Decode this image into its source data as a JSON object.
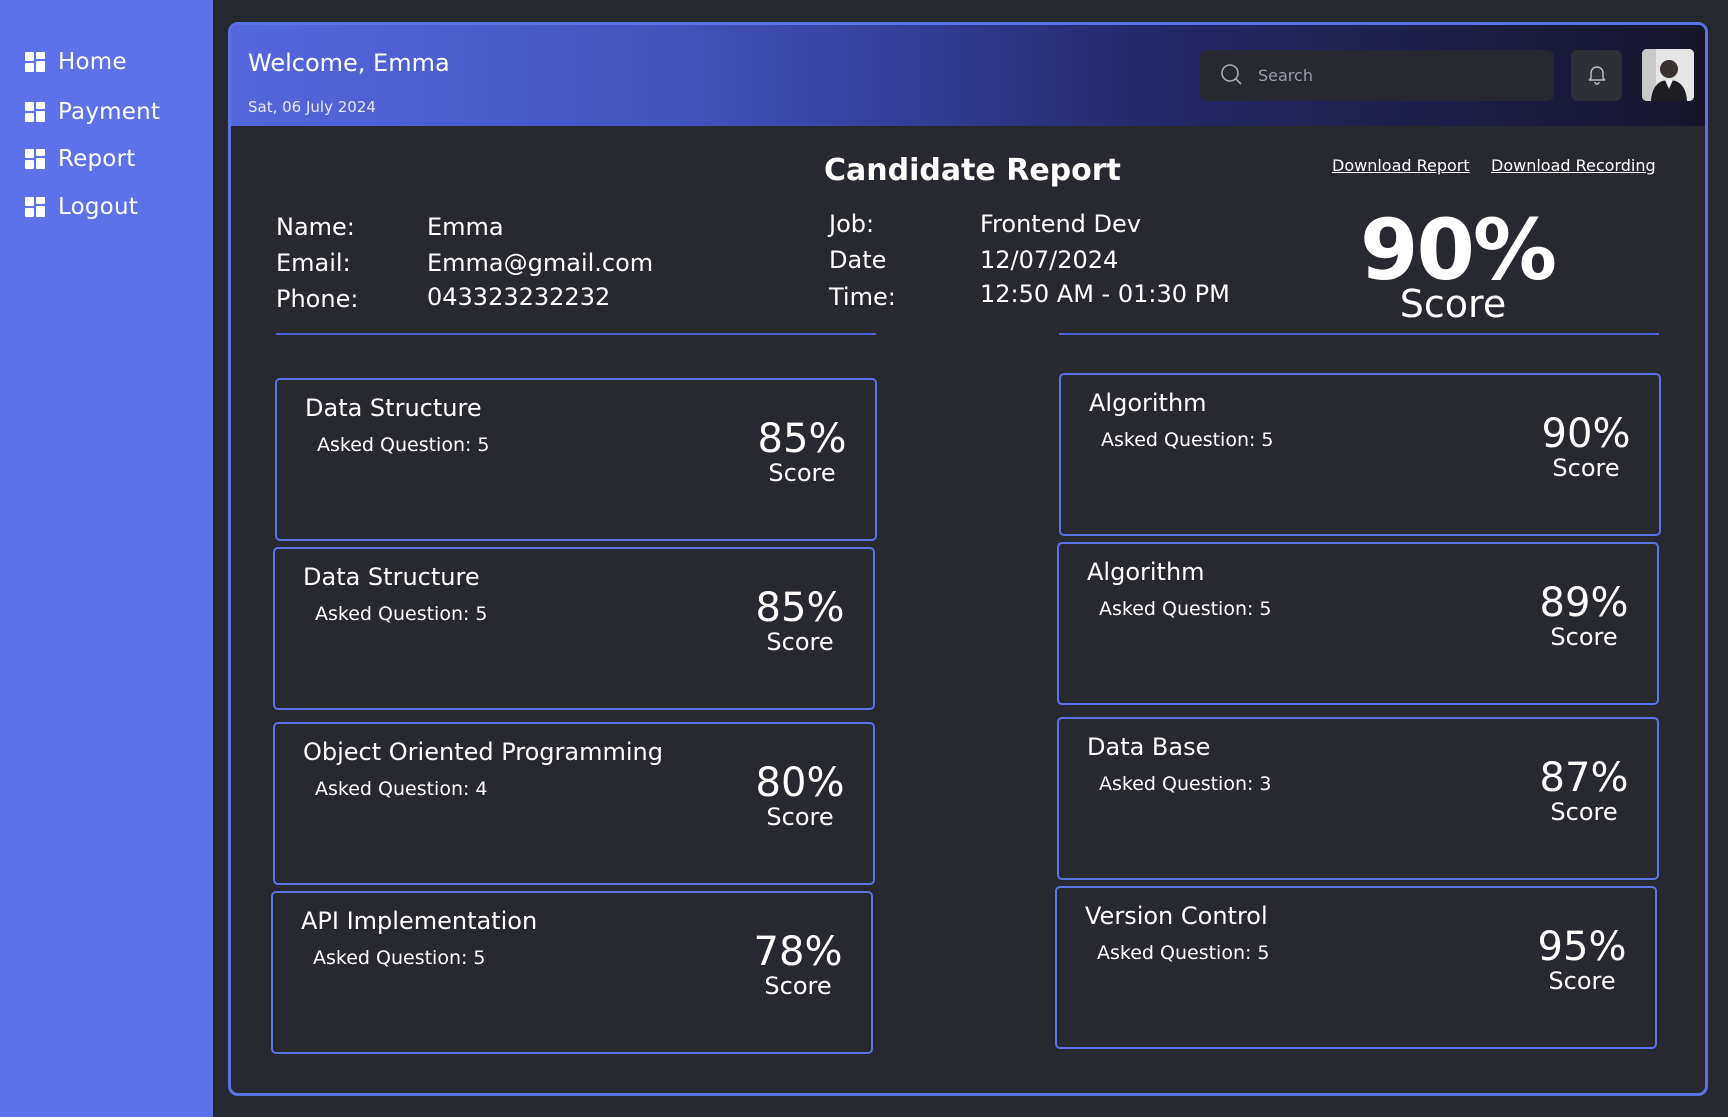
{
  "sidebar": {
    "items": [
      {
        "label": "Home"
      },
      {
        "label": "Payment"
      },
      {
        "label": "Report"
      },
      {
        "label": "Logout"
      }
    ]
  },
  "header": {
    "welcome": "Welcome, Emma",
    "date": "Sat, 06 July 2024",
    "search_placeholder": "Search"
  },
  "report": {
    "title": "Candidate Report",
    "download_report": "Download Report",
    "download_recording": "Download Recording",
    "candidate": {
      "name_label": "Name:",
      "name": "Emma",
      "email_label": "Email:",
      "email": "Emma@gmail.com",
      "phone_label": "Phone:",
      "phone": "043323232232"
    },
    "interview": {
      "job_label": "Job:",
      "job": "Frontend Dev",
      "date_label": "Date",
      "date": "12/07/2024",
      "time_label": "Time:",
      "time": "12:50 AM - 01:30 PM"
    },
    "overall": {
      "percent": "90%",
      "label": "Score"
    }
  },
  "cards": [
    {
      "title": "Data Structure",
      "asked": "Asked Question: 5",
      "percent": "85%",
      "score_label": "Score"
    },
    {
      "title": "Data Structure",
      "asked": "Asked Question: 5",
      "percent": "85%",
      "score_label": "Score"
    },
    {
      "title": "Object Oriented Programming",
      "asked": "Asked Question: 4",
      "percent": "80%",
      "score_label": "Score"
    },
    {
      "title": "API Implementation",
      "asked": "Asked Question: 5",
      "percent": "78%",
      "score_label": "Score"
    },
    {
      "title": "Algorithm",
      "asked": "Asked Question: 5",
      "percent": "90%",
      "score_label": "Score"
    },
    {
      "title": "Algorithm",
      "asked": "Asked Question: 5",
      "percent": "89%",
      "score_label": "Score"
    },
    {
      "title": "Data Base",
      "asked": "Asked Question: 3",
      "percent": "87%",
      "score_label": "Score"
    },
    {
      "title": "Version Control",
      "asked": "Asked Question: 5",
      "percent": "95%",
      "score_label": "Score"
    }
  ],
  "icons": {
    "nav": "dashboard-grid-icon",
    "search": "search-icon",
    "notifications": "bell-icon",
    "user": "avatar"
  },
  "colors": {
    "sidebar": "#5b72e8",
    "background": "#272830",
    "accent_border": "#5b72e8",
    "text": "#ffffff"
  }
}
